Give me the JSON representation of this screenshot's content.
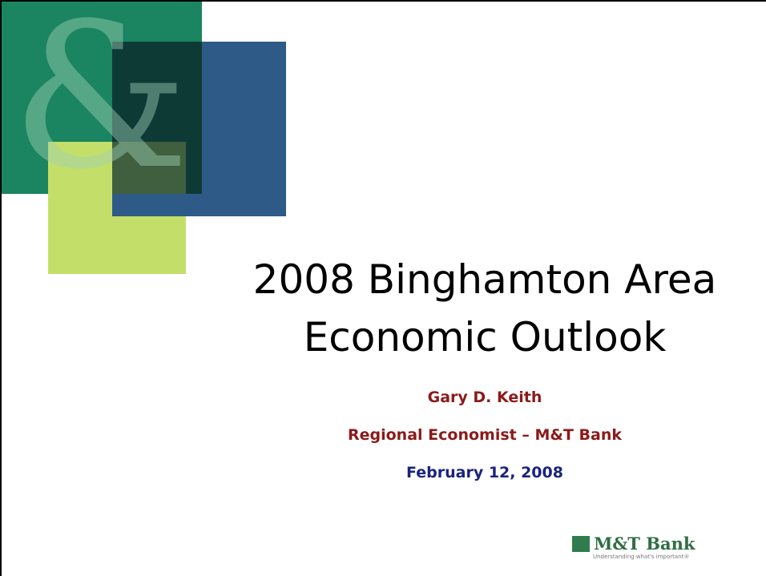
{
  "decor_glyph": "&",
  "title_lines": [
    "2008 Binghamton Area",
    "Economic Outlook"
  ],
  "presenter": {
    "name": "Gary D. Keith",
    "role": "Regional Economist – M&T Bank",
    "date": "February 12, 2008"
  },
  "logo": {
    "name": "M&T Bank",
    "tagline": "Understanding what's important®"
  }
}
